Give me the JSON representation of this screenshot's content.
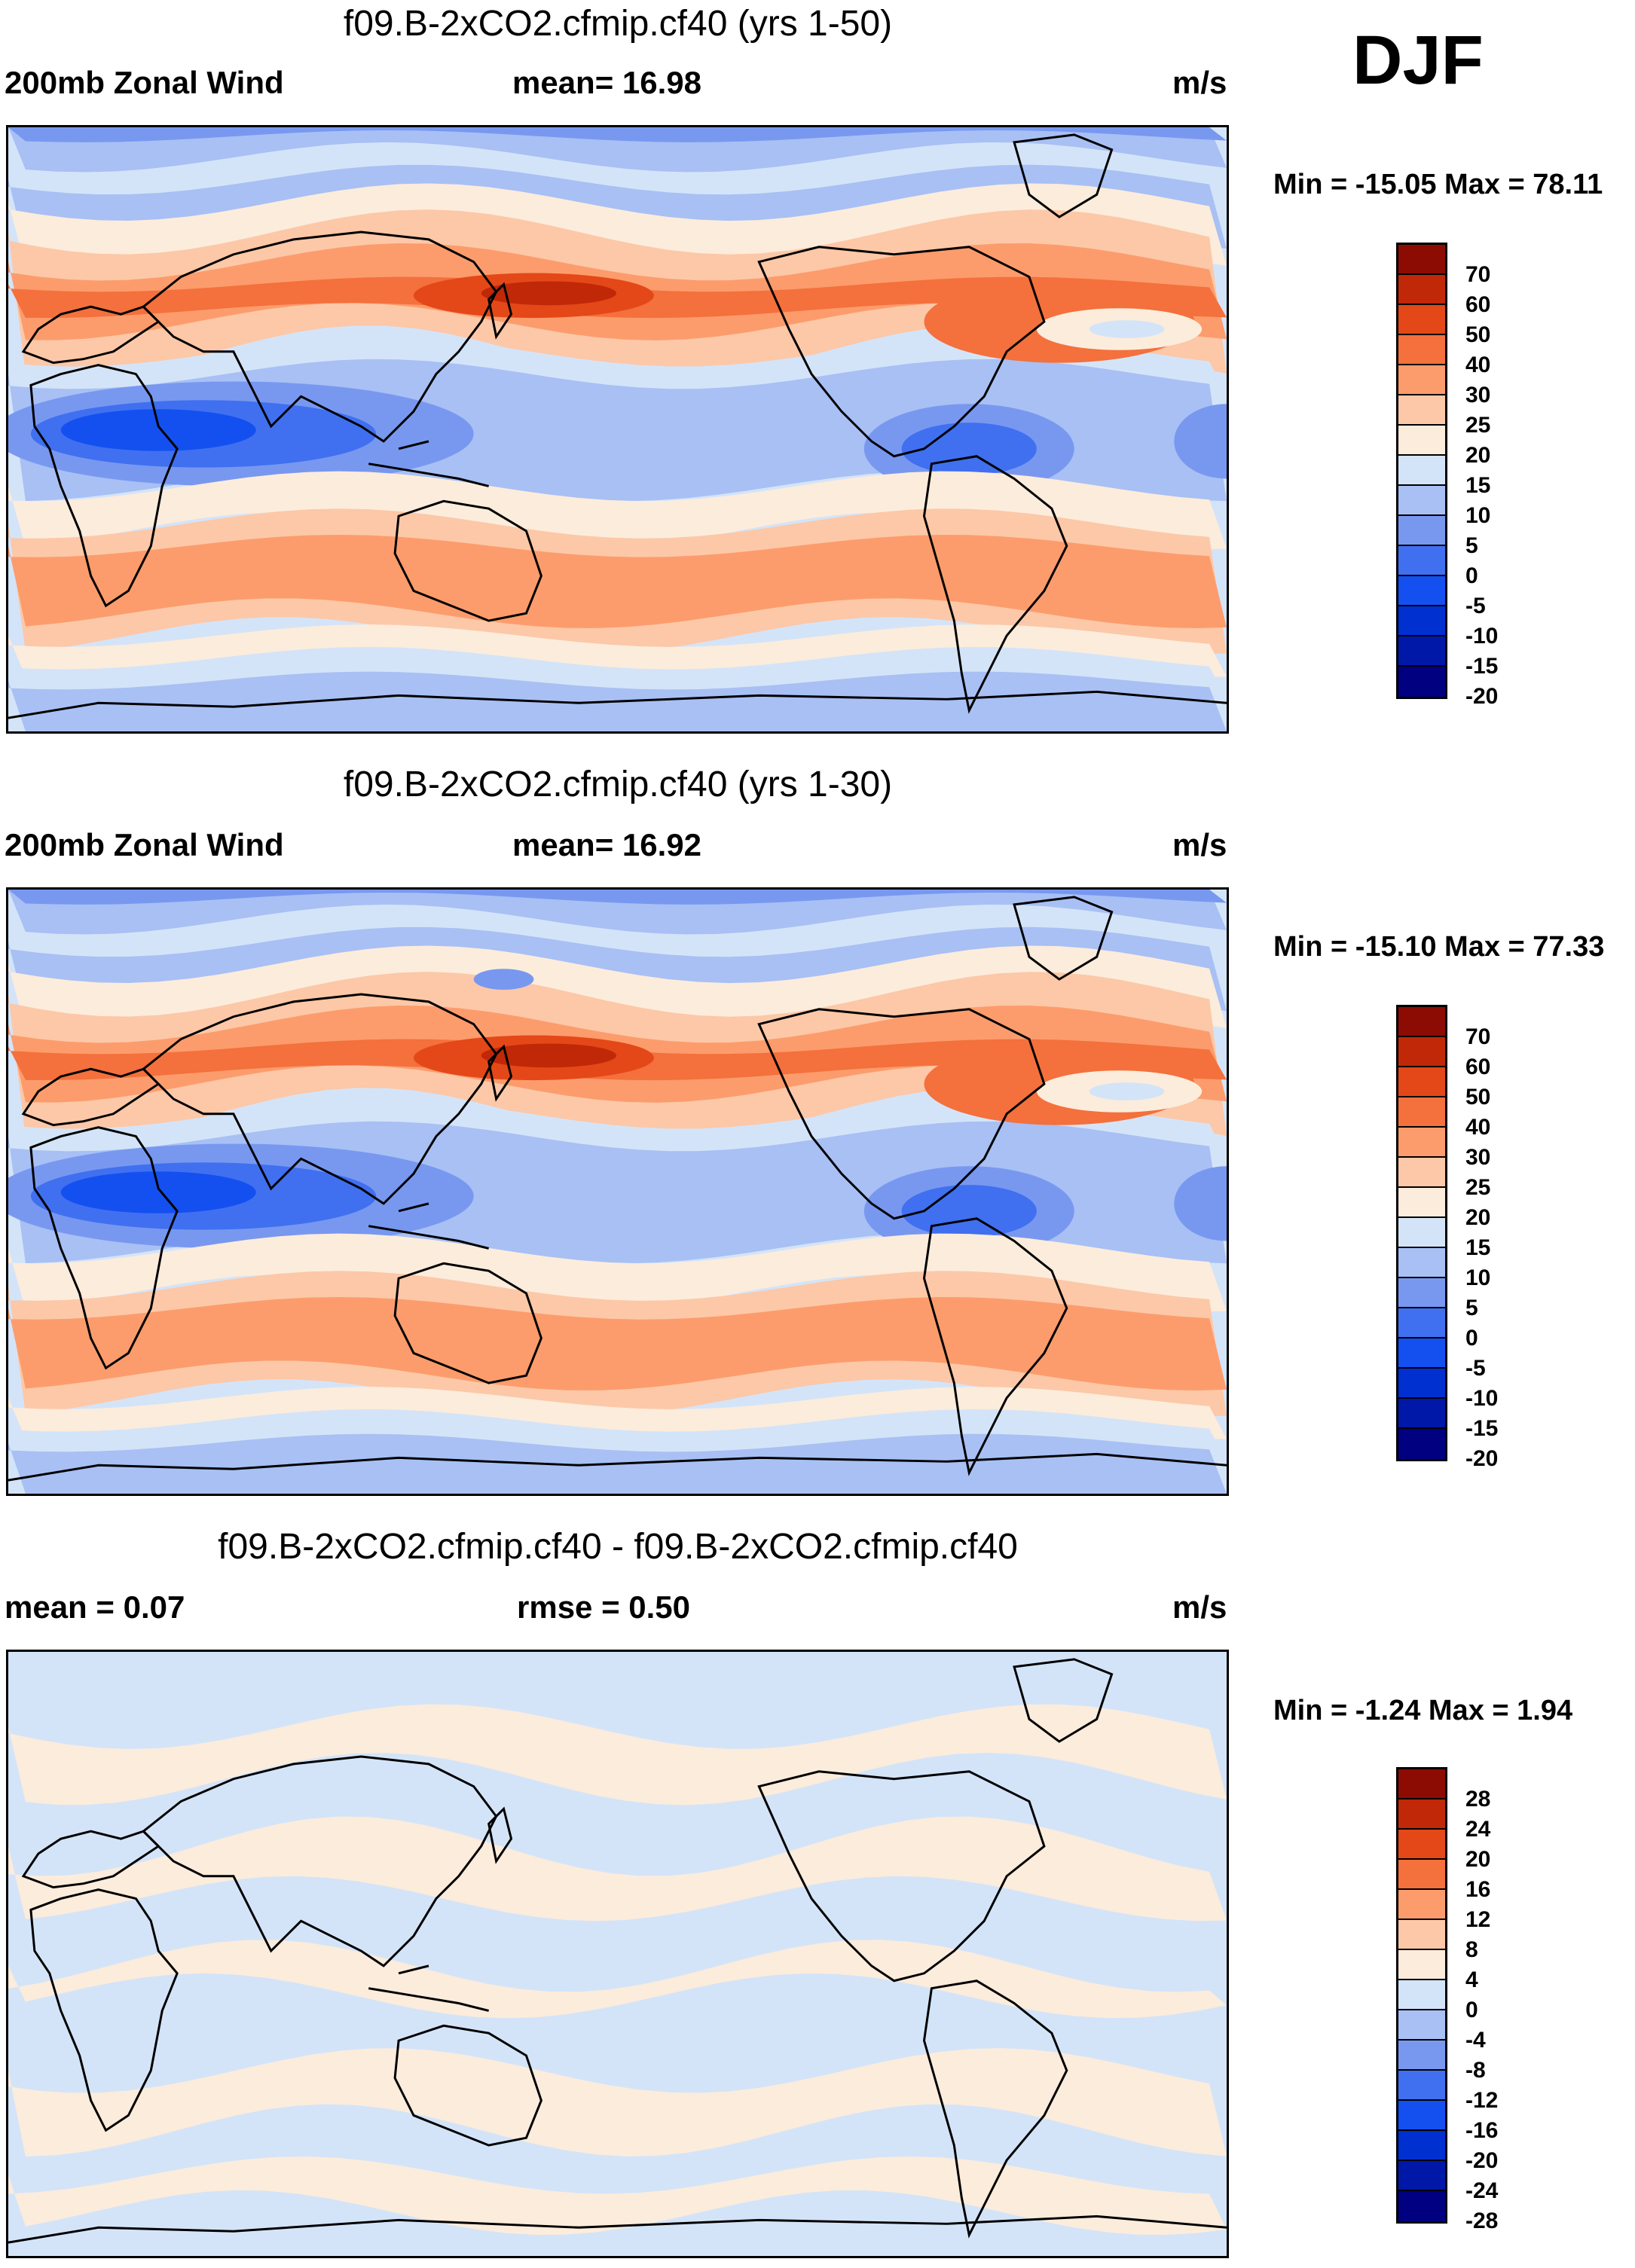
{
  "season": "DJF",
  "colors": {
    "wind": [
      "#000080",
      "#0018a8",
      "#0030d0",
      "#1450f0",
      "#4070f0",
      "#7898f0",
      "#a8c0f4",
      "#d4e4f8",
      "#fcecdc",
      "#fcc8a8",
      "#fc9c6c",
      "#f4703c",
      "#e44818",
      "#c02808",
      "#8c0c04"
    ],
    "diff": [
      "#000080",
      "#0018a8",
      "#0030d0",
      "#1450f0",
      "#4070f0",
      "#7898f0",
      "#a8c0f4",
      "#d4e4f8",
      "#fcecdc",
      "#fcc8a8",
      "#fc9c6c",
      "#f4703c",
      "#e44818",
      "#c02808",
      "#8c0c04"
    ],
    "land_outline": "#000000"
  },
  "panels": [
    {
      "title": "f09.B-2xCO2.cfmip.cf40 (yrs 1-50)",
      "left_label": "200mb Zonal Wind",
      "center_label": "mean=  16.98",
      "units": "m/s",
      "minmax": "Min = -15.05 Max =  78.11",
      "colorbar_labels": [
        "70",
        "60",
        "50",
        "40",
        "30",
        "25",
        "20",
        "15",
        "10",
        "5",
        "0",
        "-5",
        "-10",
        "-15",
        "-20"
      ],
      "variant": "a"
    },
    {
      "title": "f09.B-2xCO2.cfmip.cf40 (yrs 1-30)",
      "left_label": "200mb Zonal Wind",
      "center_label": "mean=  16.92",
      "units": "m/s",
      "minmax": "Min = -15.10 Max =  77.33",
      "colorbar_labels": [
        "70",
        "60",
        "50",
        "40",
        "30",
        "25",
        "20",
        "15",
        "10",
        "5",
        "0",
        "-5",
        "-10",
        "-15",
        "-20"
      ],
      "variant": "b"
    },
    {
      "title": "f09.B-2xCO2.cfmip.cf40 - f09.B-2xCO2.cfmip.cf40",
      "left_label": "mean =   0.07",
      "center_label": "rmse =   0.50",
      "units": "m/s",
      "minmax": "Min =  -1.24 Max =   1.94",
      "colorbar_labels": [
        "28",
        "24",
        "20",
        "16",
        "12",
        "8",
        "4",
        "0",
        "-4",
        "-8",
        "-12",
        "-16",
        "-20",
        "-24",
        "-28"
      ],
      "variant": "diff"
    }
  ]
}
